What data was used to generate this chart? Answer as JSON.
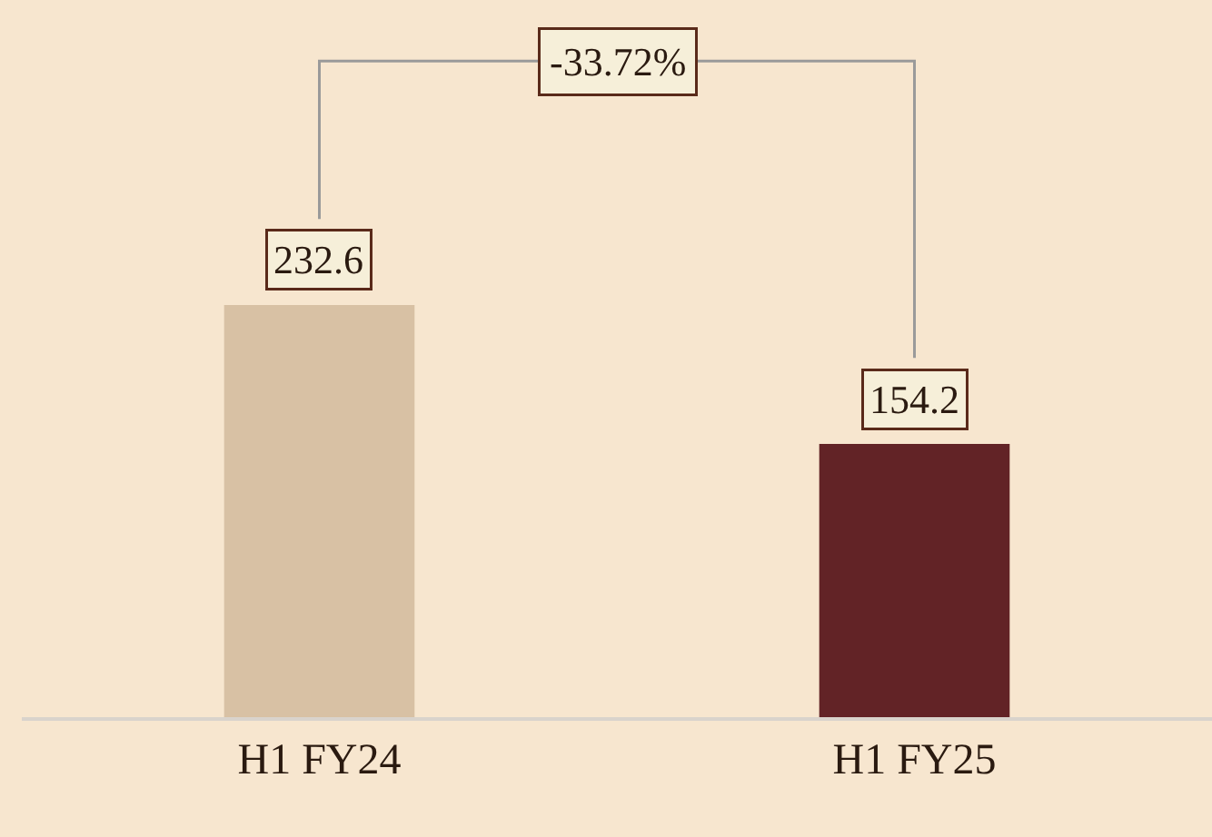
{
  "chart_data": {
    "type": "bar",
    "categories": [
      "H1 FY24",
      "H1 FY25"
    ],
    "values": [
      232.6,
      154.2
    ],
    "colors": [
      "#d8c1a4",
      "#622326"
    ],
    "data_labels": true,
    "annotations": [
      "-33.72%"
    ]
  }
}
